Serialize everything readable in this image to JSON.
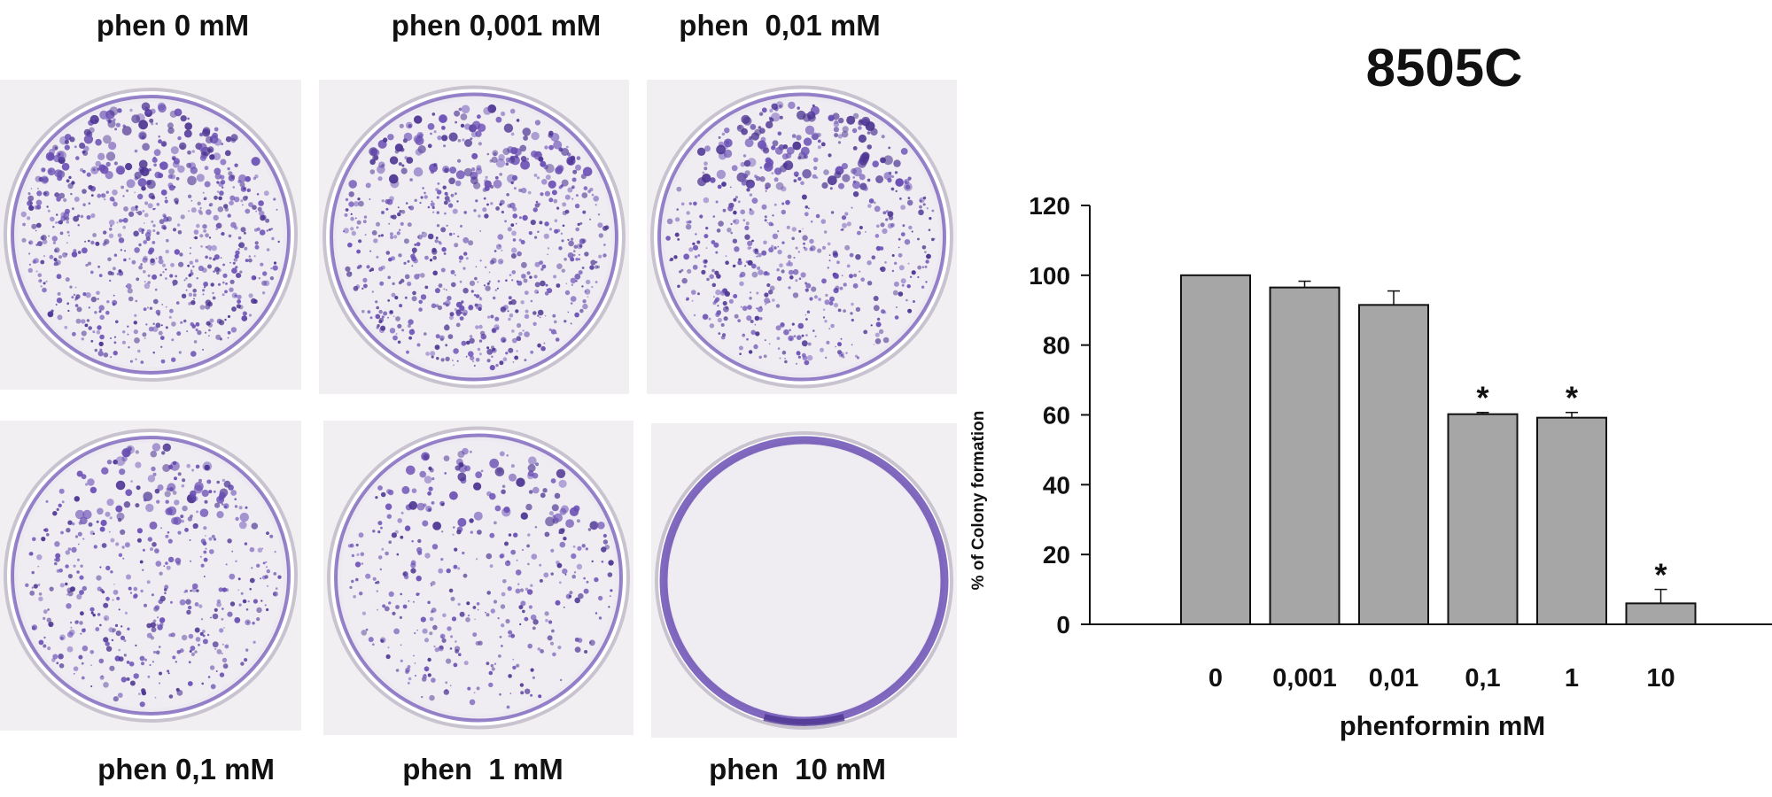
{
  "colors": {
    "stain": "#6a4fb4",
    "stain_dark": "#4b3391",
    "bar_fill": "#a6a6a6",
    "bar_stroke": "#111111",
    "panel_bg": "#f1eff2"
  },
  "dishes": [
    {
      "label": "phen 0 mM",
      "density": 0.85
    },
    {
      "label": "phen 0,001 mM",
      "density": 0.8
    },
    {
      "label": "phen  0,01 mM",
      "density": 0.72
    },
    {
      "label": "phen 0,1 mM",
      "density": 0.55
    },
    {
      "label": "phen  1 mM",
      "density": 0.45
    },
    {
      "label": "phen  10 mM",
      "density": 0.0
    }
  ],
  "chart_data": {
    "type": "bar",
    "title": "8505C",
    "xlabel": "phenformin mM",
    "ylabel": "% of Colony formation",
    "categories": [
      "0",
      "0,001",
      "0,01",
      "0,1",
      "1",
      "10"
    ],
    "values": [
      100,
      96.5,
      91.5,
      60.2,
      59.2,
      6
    ],
    "errors": [
      0,
      1.8,
      4,
      0.5,
      1.5,
      4
    ],
    "significance": [
      "",
      "",
      "",
      "*",
      "*",
      "*"
    ],
    "ylim": [
      0,
      120
    ],
    "yticks": [
      "0",
      "20",
      "40",
      "60",
      "80",
      "100",
      "120"
    ],
    "grid": false,
    "legend": "none"
  }
}
